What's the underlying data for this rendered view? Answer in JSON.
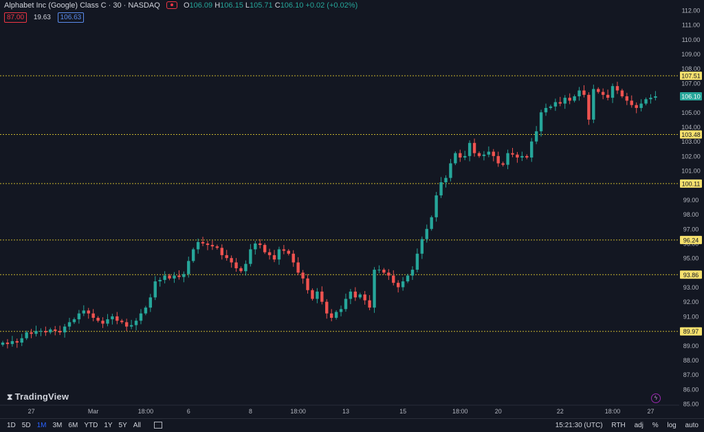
{
  "header": {
    "symbol": "Alphabet Inc (Google) Class C · 30 · NASDAQ",
    "open_label": "O",
    "open": "106.09",
    "high_label": "H",
    "high": "106.15",
    "low_label": "L",
    "low": "105.71",
    "close_label": "C",
    "close": "106.10",
    "change": "+0.02 (+0.02%)"
  },
  "badges": {
    "sell": "87.00",
    "spread": "19.63",
    "buy": "106.63"
  },
  "brand": "TradingView",
  "bottom_bar": {
    "ranges": [
      "1D",
      "5D",
      "1M",
      "3M",
      "6M",
      "YTD",
      "1Y",
      "5Y",
      "All"
    ],
    "active_range": "1M",
    "clock": "15:21:30 (UTC)",
    "session": "RTH",
    "adj": "adj",
    "percent": "%",
    "log": "log",
    "auto": "auto"
  },
  "colors": {
    "up": "#26a69a",
    "down": "#ef5350",
    "level_line": "#c9b62e",
    "level_label_bg": "#f6e16e",
    "background": "#131722"
  },
  "chart_data": {
    "type": "candlestick",
    "ylim": [
      85,
      112
    ],
    "y_ticks": [
      "112.00",
      "111.00",
      "110.00",
      "109.00",
      "108.00",
      "107.00",
      "106.00",
      "105.00",
      "104.00",
      "103.00",
      "102.00",
      "101.00",
      "100.00",
      "99.00",
      "98.00",
      "97.00",
      "96.00",
      "95.00",
      "94.00",
      "93.00",
      "92.00",
      "91.00",
      "90.00",
      "89.00",
      "88.00",
      "87.00",
      "86.00",
      "85.00"
    ],
    "x_tick_labels": [
      "27",
      "Mar",
      "18:00",
      "6",
      "8",
      "18:00",
      "13",
      "15",
      "18:00",
      "20",
      "22",
      "18:00",
      "27"
    ],
    "x_tick_bar_index": [
      6,
      19,
      30,
      39,
      52,
      62,
      72,
      84,
      96,
      104,
      117,
      128,
      136
    ],
    "levels": [
      "107.51",
      "103.48",
      "100.11",
      "96.24",
      "93.86",
      "89.97"
    ],
    "last_price": "106.10",
    "close": [
      89.2,
      89.1,
      89.3,
      89.2,
      89.5,
      89.9,
      89.8,
      90.0,
      90.0,
      89.9,
      90.1,
      90.0,
      89.9,
      90.3,
      90.6,
      90.8,
      91.2,
      91.4,
      91.2,
      90.9,
      90.7,
      90.5,
      90.8,
      91.0,
      90.7,
      90.6,
      90.3,
      90.4,
      90.7,
      91.2,
      91.6,
      92.3,
      93.4,
      93.5,
      93.8,
      93.6,
      93.8,
      93.7,
      93.9,
      94.8,
      95.6,
      96.1,
      96.0,
      95.9,
      95.8,
      95.7,
      95.2,
      95.0,
      94.7,
      94.3,
      94.1,
      94.6,
      95.6,
      96.0,
      95.9,
      95.4,
      95.2,
      94.9,
      95.6,
      95.5,
      95.3,
      94.7,
      94.0,
      93.6,
      92.8,
      92.2,
      92.7,
      92.0,
      91.2,
      90.9,
      91.3,
      91.5,
      92.2,
      92.7,
      92.3,
      92.5,
      92.1,
      91.6,
      94.2,
      94.2,
      94.0,
      93.8,
      93.3,
      93.0,
      93.4,
      93.8,
      94.2,
      95.3,
      96.3,
      97.0,
      97.8,
      99.3,
      100.2,
      100.5,
      101.5,
      102.2,
      101.9,
      102.0,
      102.9,
      102.2,
      102.0,
      102.1,
      102.3,
      102.0,
      101.5,
      101.4,
      102.2,
      102.1,
      101.9,
      102.0,
      101.9,
      103.0,
      103.7,
      105.0,
      105.3,
      105.4,
      105.7,
      105.6,
      106.0,
      105.8,
      106.1,
      106.5,
      106.2,
      104.5,
      106.6,
      106.4,
      106.2,
      106.0,
      106.8,
      106.5,
      106.1,
      105.8,
      105.5,
      105.3,
      105.6,
      105.9,
      106.0,
      106.1
    ],
    "volatility_note": ""
  }
}
